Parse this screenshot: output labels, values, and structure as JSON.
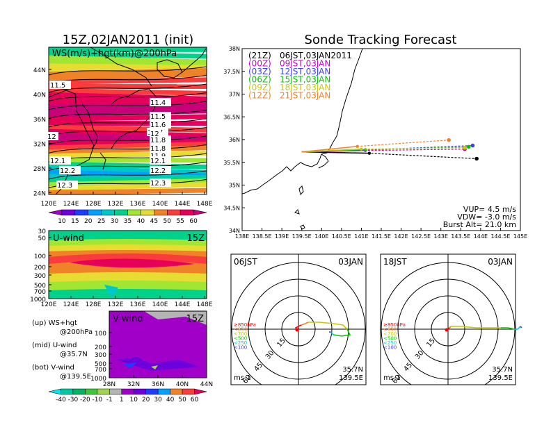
{
  "left_title": "15Z,02JAN2011 (init)",
  "right_title": "Sonde Tracking Forecast",
  "map_panel": {
    "label": "WS(m/s)+hgt(km)@200hPa",
    "lat_ticks": [
      "44N",
      "40N",
      "36N",
      "32N",
      "28N",
      "24N"
    ],
    "lon_ticks": [
      "120E",
      "124E",
      "128E",
      "132E",
      "136E",
      "140E",
      "144E",
      "148E"
    ],
    "contour_labels": [
      "11.5",
      "11.4",
      "11.5",
      "11.6",
      "11.7",
      "11.8",
      "11.8",
      "11.9",
      "12",
      "12",
      "12.1",
      "12.1",
      "12.2",
      "12.2",
      "12.3",
      "12.3"
    ]
  },
  "ws_colorbar": {
    "labels": [
      "10",
      "15",
      "20",
      "25",
      "30",
      "35",
      "40",
      "45",
      "50",
      "55",
      "60"
    ],
    "colors": [
      "#a000c8",
      "#6e00dc",
      "#1e3cff",
      "#00a0ff",
      "#00c8c8",
      "#00d28c",
      "#a0e632",
      "#e6dc32",
      "#f08228",
      "#fa3c3c",
      "#e6005a",
      "#c8007a"
    ]
  },
  "uwind_panel": {
    "label": "U-wind",
    "time": "15Z",
    "p_ticks": [
      "30",
      "50",
      "100",
      "200",
      "300",
      "500",
      "700",
      "1000"
    ],
    "lon_ticks": [
      "120E",
      "124E",
      "128E",
      "132E",
      "136E",
      "140E",
      "144E",
      "148E"
    ]
  },
  "vwind_panel": {
    "label": "V-wind",
    "time": "15Z",
    "p_ticks": [
      "100",
      "200",
      "300",
      "500",
      "700",
      "1000"
    ],
    "lat_ticks": [
      "28N",
      "32N",
      "36N",
      "40N",
      "44N"
    ]
  },
  "vwind_colorbar": {
    "labels": [
      "-40",
      "-30",
      "-20",
      "-10",
      "-1",
      "1",
      "10",
      "20",
      "30",
      "40",
      "50",
      "60"
    ],
    "colors": [
      "#00e6e6",
      "#00c8a0",
      "#00b464",
      "#3cc83c",
      "#a0d250",
      "#b4b4b4",
      "#a000c8",
      "#6e00dc",
      "#1e3cff",
      "#00a0ff",
      "#f08228",
      "#fa3c3c",
      "#e6005a"
    ]
  },
  "legend_notes": [
    {
      "line1": "(up) WS+hgt",
      "line2": "@200hPa"
    },
    {
      "line1": "(mid) U-wind",
      "line2": "@35.7N"
    },
    {
      "line1": "(bot) V-wind",
      "line2": "@139.5E"
    }
  ],
  "track_panel": {
    "lat_ticks": [
      "38N",
      "37.5N",
      "37N",
      "36.5N",
      "36N",
      "35.5N",
      "35N",
      "34.5N",
      "34N"
    ],
    "lon_ticks": [
      "138E",
      "138.5E",
      "139E",
      "139.5E",
      "140E",
      "140.5E",
      "141E",
      "141.5E",
      "142E",
      "142.5E",
      "143E",
      "143.5E",
      "144E",
      "144.5E",
      "145E"
    ],
    "launches": [
      {
        "utc": "(21Z)",
        "jst": "06JST,03JAN2011",
        "color": "#000000"
      },
      {
        "utc": "(00Z)",
        "jst": "09JST,03JAN",
        "color": "#c800c8"
      },
      {
        "utc": "(03Z)",
        "jst": "12JST,03JAN",
        "color": "#3c3cff"
      },
      {
        "utc": "(06Z)",
        "jst": "15JST,03JAN",
        "color": "#00c800"
      },
      {
        "utc": "(09Z)",
        "jst": "18JST,03JAN",
        "color": "#c8c800"
      },
      {
        "utc": "(12Z)",
        "jst": "21JST,03JAN",
        "color": "#f08228"
      }
    ],
    "params": [
      "VUP= 4.5 m/s",
      "VDW= -3.0 m/s",
      "Burst Alt= 21.0 km"
    ]
  },
  "hodo_left": {
    "time": "06JST",
    "date": "03JAN",
    "lat": "35.7N",
    "lon": "139.5E",
    "units": "ms-1",
    "rings": [
      "15",
      "30",
      "45",
      "60"
    ]
  },
  "hodo_right": {
    "time": "18JST",
    "date": "03JAN",
    "lat": "35.7N",
    "lon": "139.5E",
    "units": "ms-1",
    "rings": [
      "15",
      "30",
      "45",
      "60"
    ]
  },
  "hodo_levels": [
    {
      "label": "≥850hPa",
      "color": "#ff0000"
    },
    {
      "label": "<850",
      "color": "#f08228"
    },
    {
      "label": "<700",
      "color": "#c8c800"
    },
    {
      "label": "<500",
      "color": "#00c800"
    },
    {
      "label": "<250",
      "color": "#00c8c8"
    },
    {
      "label": "<100",
      "color": "#3c3cff"
    }
  ],
  "chart_data": {
    "type": "line",
    "title": "Sonde Tracking Forecast",
    "xlim": [
      138,
      145
    ],
    "ylim": [
      34,
      38
    ],
    "series": [
      {
        "name": "(21Z) 06JST,03JAN2011",
        "x": [
          139.5,
          141.2,
          143.9
        ],
        "y": [
          35.73,
          35.7,
          35.58
        ]
      },
      {
        "name": "(00Z) 09JST,03JAN",
        "x": [
          139.5,
          141.1,
          143.6
        ],
        "y": [
          35.73,
          35.76,
          35.79
        ]
      },
      {
        "name": "(03Z) 12JST,03JAN",
        "x": [
          139.5,
          141.1,
          143.8
        ],
        "y": [
          35.73,
          35.77,
          35.87
        ]
      },
      {
        "name": "(06Z) 15JST,03JAN",
        "x": [
          139.5,
          141.1,
          143.7
        ],
        "y": [
          35.73,
          35.78,
          35.84
        ]
      },
      {
        "name": "(09Z) 18JST,03JAN",
        "x": [
          139.5,
          141.0,
          143.6
        ],
        "y": [
          35.73,
          35.79,
          35.82
        ]
      },
      {
        "name": "(12Z) 21JST,03JAN",
        "x": [
          139.5,
          140.9,
          143.2
        ],
        "y": [
          35.73,
          35.85,
          35.99
        ]
      }
    ]
  }
}
